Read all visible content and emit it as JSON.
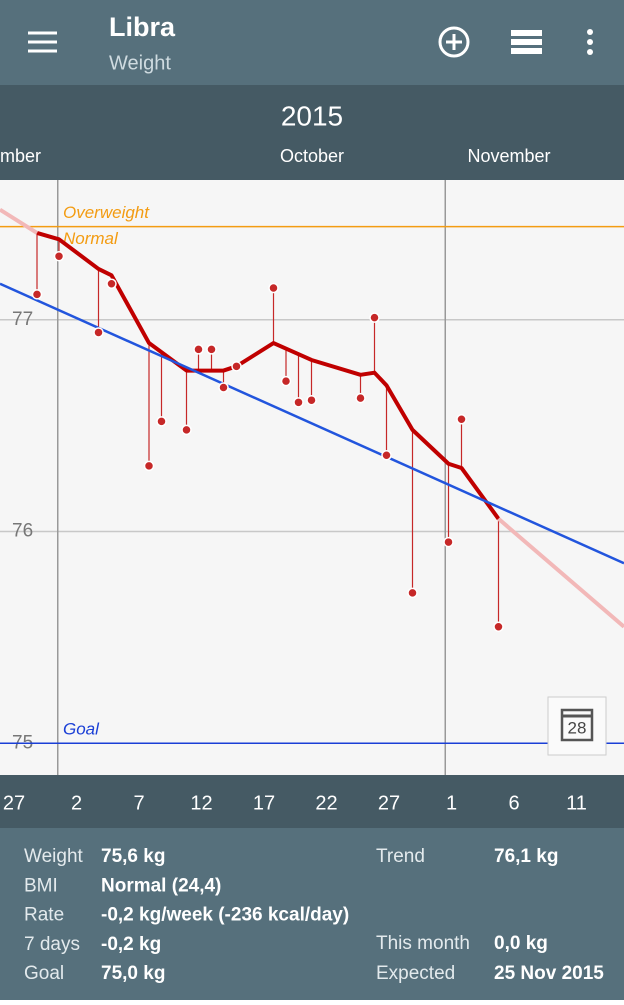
{
  "app_bar": {
    "title": "Libra",
    "subtitle": "Weight"
  },
  "chart_data": {
    "type": "line",
    "year": "2015",
    "month_labels": [
      "mber",
      "October",
      "November"
    ],
    "month_starts": [
      31,
      62
    ],
    "xlim": [
      25.88,
      75.8
    ],
    "xticks": [
      {
        "value": 27,
        "label": "27"
      },
      {
        "value": 32,
        "label": "2"
      },
      {
        "value": 37,
        "label": "7"
      },
      {
        "value": 42,
        "label": "12"
      },
      {
        "value": 47,
        "label": "17"
      },
      {
        "value": 52,
        "label": "22"
      },
      {
        "value": 57,
        "label": "27"
      },
      {
        "value": 62,
        "label": "1"
      },
      {
        "value": 67,
        "label": "6"
      },
      {
        "value": 72,
        "label": "11"
      }
    ],
    "ylim": [
      74.85,
      77.66
    ],
    "yticks": [
      75,
      76,
      77
    ],
    "grid": true,
    "reference_lines": [
      {
        "label": "Overweight",
        "label_below": "Normal",
        "value": 77.44,
        "color": "#f39c12"
      },
      {
        "label": "Goal",
        "value": 75,
        "color": "#1a3fd6"
      }
    ],
    "series": [
      {
        "color": "#c62828",
        "markers": true,
        "x": [
          28.84,
          30.6,
          33.76,
          34.8,
          37.8,
          38.8,
          40.8,
          41.76,
          42.8,
          43.76,
          44.8,
          47.76,
          48.76,
          49.76,
          50.8,
          54.72,
          55.84,
          56.8,
          58.88,
          61.76,
          62.8,
          65.76
        ],
        "values": [
          77.12,
          77.3,
          76.94,
          77.17,
          76.31,
          76.52,
          76.48,
          76.86,
          76.86,
          76.68,
          76.78,
          77.15,
          76.71,
          76.61,
          76.62,
          76.63,
          77.01,
          76.36,
          75.71,
          75.95,
          76.53,
          75.55
        ]
      },
      {
        "color": "#c00000",
        "width": 4,
        "x": [
          28.84,
          30.6,
          33.76,
          34.8,
          37.8,
          40.8,
          43.76,
          44.8,
          47.76,
          50.8,
          54.72,
          55.84,
          56.8,
          58.88,
          61.76,
          62.8,
          65.76
        ],
        "values": [
          77.41,
          77.38,
          77.24,
          77.21,
          76.89,
          76.76,
          76.76,
          76.78,
          76.89,
          76.81,
          76.74,
          76.75,
          76.69,
          76.48,
          76.32,
          76.3,
          76.06
        ]
      },
      {
        "color": "#f2b8b8",
        "width": 4,
        "x": [
          25.88,
          28.84
        ],
        "values": [
          77.52,
          77.41
        ]
      },
      {
        "color": "#f2b8b8",
        "width": 4,
        "x": [
          65.76,
          75.8
        ],
        "values": [
          76.06,
          75.55
        ]
      },
      {
        "color": "#2255dd",
        "width": 2.5,
        "x": [
          25.88,
          75.8
        ],
        "values": [
          77.17,
          75.85
        ]
      }
    ],
    "calendar_button": "28"
  },
  "stats": {
    "left": [
      [
        "Weight",
        "75,6 kg"
      ],
      [
        "BMI",
        "Normal (24,4)"
      ],
      [
        "Rate",
        "-0,2 kg/week (-236 kcal/day)"
      ],
      [
        "7 days",
        "-0,2 kg"
      ],
      [
        "Goal",
        "75,0 kg"
      ]
    ],
    "right": [
      [
        "Trend",
        "76,1 kg"
      ],
      [
        "This month",
        "0,0 kg"
      ],
      [
        "Expected",
        "25 Nov 2015"
      ]
    ]
  }
}
